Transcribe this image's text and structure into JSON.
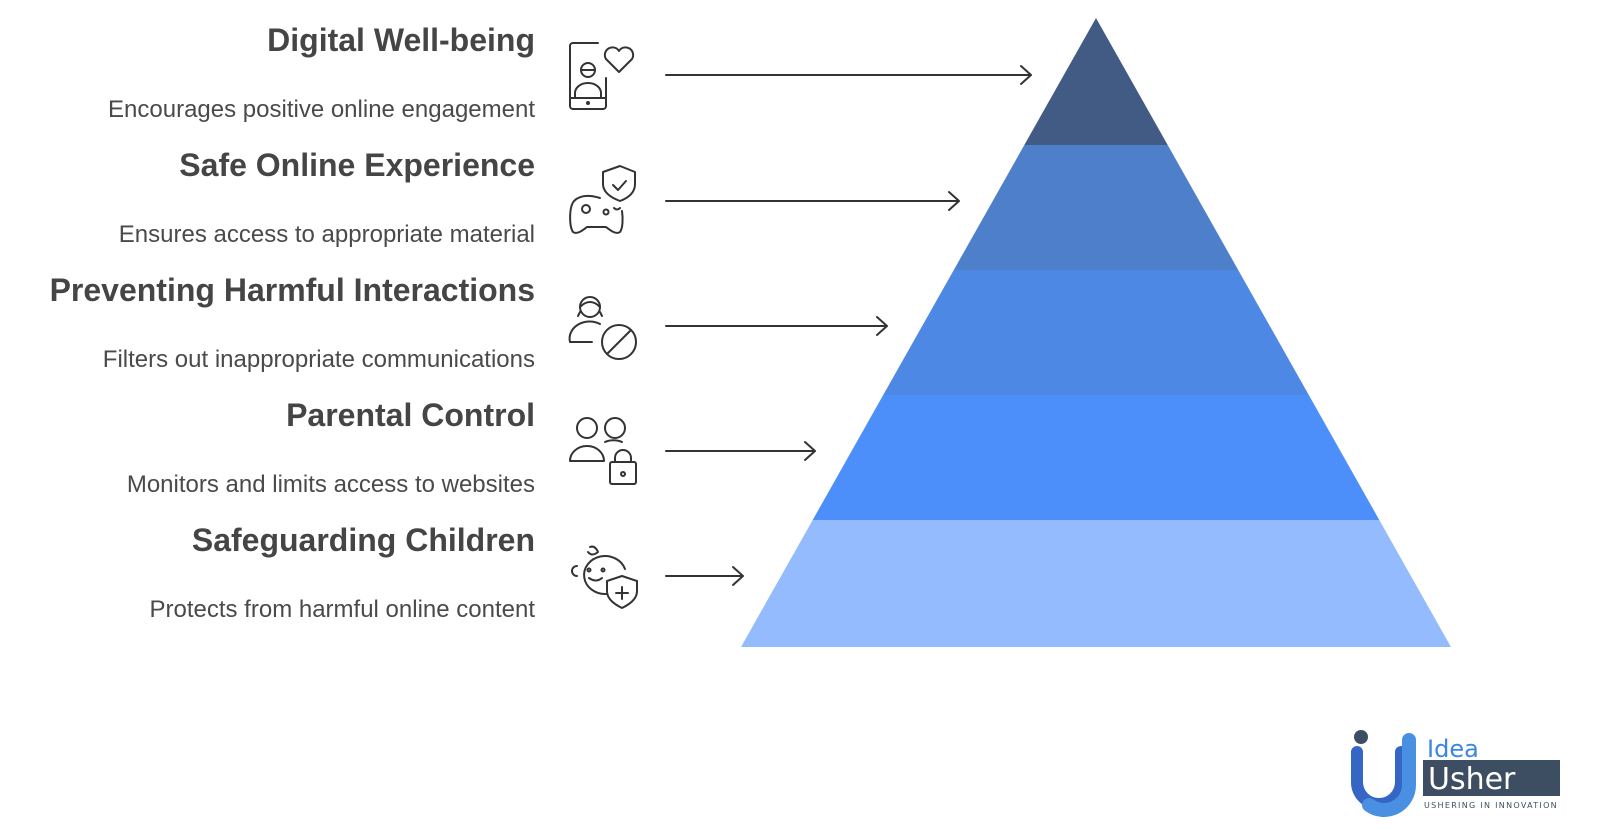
{
  "levels": [
    {
      "title": "Digital Well-being",
      "description": "Encourages positive online engagement",
      "icon": "phone-user-heart-icon",
      "color": "#425B84"
    },
    {
      "title": "Safe Online Experience",
      "description": "Ensures access to appropriate material",
      "icon": "gamepad-shield-icon",
      "color": "#4E7FCA"
    },
    {
      "title": "Preventing Harmful Interactions",
      "description": "Filters out inappropriate communications",
      "icon": "user-block-icon",
      "color": "#4D88E4"
    },
    {
      "title": "Parental Control",
      "description": "Monitors and limits access to websites",
      "icon": "users-lock-icon",
      "color": "#4C8FFB"
    },
    {
      "title": "Safeguarding Children",
      "description": "Protects from harmful online content",
      "icon": "baby-shield-icon",
      "color": "#94BBFD"
    }
  ],
  "logo": {
    "line1": "Idea",
    "line2": "Usher",
    "tagline": "USHERING IN INNOVATION"
  }
}
